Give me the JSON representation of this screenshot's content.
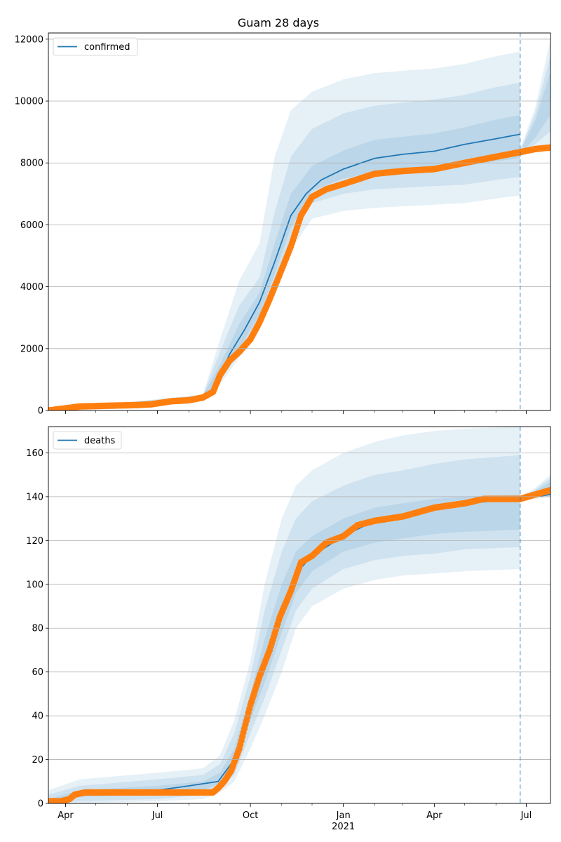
{
  "chart_data": [
    {
      "type": "line",
      "title": "Guam 28 days",
      "legend": {
        "label": "confirmed",
        "placement": "top-left"
      },
      "ylim": [
        0,
        12200
      ],
      "yticks": [
        0,
        2000,
        4000,
        6000,
        8000,
        10000,
        12000
      ],
      "grid": "horizontal",
      "forecast_start": "2021-06-25",
      "x_range": [
        "2020-03-15",
        "2021-07-25"
      ],
      "observed": {
        "points": [
          [
            "2020-03-15",
            0
          ],
          [
            "2020-04-01",
            70
          ],
          [
            "2020-04-15",
            130
          ],
          [
            "2020-05-15",
            155
          ],
          [
            "2020-06-10",
            175
          ],
          [
            "2020-06-25",
            200
          ],
          [
            "2020-07-15",
            300
          ],
          [
            "2020-08-01",
            330
          ],
          [
            "2020-08-15",
            420
          ],
          [
            "2020-08-25",
            600
          ],
          [
            "2020-09-01",
            1150
          ],
          [
            "2020-09-10",
            1600
          ],
          [
            "2020-09-20",
            1900
          ],
          [
            "2020-10-01",
            2300
          ],
          [
            "2020-10-10",
            2850
          ],
          [
            "2020-10-20",
            3600
          ],
          [
            "2020-10-30",
            4400
          ],
          [
            "2020-11-10",
            5300
          ],
          [
            "2020-11-20",
            6300
          ],
          [
            "2020-12-01",
            6900
          ],
          [
            "2020-12-15",
            7150
          ],
          [
            "2021-01-01",
            7320
          ],
          [
            "2021-02-01",
            7650
          ],
          [
            "2021-03-01",
            7740
          ],
          [
            "2021-04-01",
            7800
          ],
          [
            "2021-05-01",
            8000
          ],
          [
            "2021-06-01",
            8200
          ],
          [
            "2021-06-25",
            8350
          ],
          [
            "2021-07-10",
            8450
          ],
          [
            "2021-07-25",
            8500
          ]
        ]
      },
      "forecast_mean": {
        "points": [
          [
            "2020-03-15",
            0
          ],
          [
            "2020-04-15",
            120
          ],
          [
            "2020-06-25",
            200
          ],
          [
            "2020-08-15",
            450
          ],
          [
            "2020-08-28",
            700
          ],
          [
            "2020-09-10",
            1800
          ],
          [
            "2020-09-25",
            2600
          ],
          [
            "2020-10-10",
            3500
          ],
          [
            "2020-10-25",
            4800
          ],
          [
            "2020-11-10",
            6300
          ],
          [
            "2020-11-25",
            7000
          ],
          [
            "2020-12-10",
            7450
          ],
          [
            "2021-01-01",
            7800
          ],
          [
            "2021-02-01",
            8150
          ],
          [
            "2021-03-01",
            8280
          ],
          [
            "2021-04-01",
            8380
          ],
          [
            "2021-05-01",
            8600
          ],
          [
            "2021-06-01",
            8780
          ],
          [
            "2021-06-25",
            8930
          ]
        ]
      },
      "bands": [
        {
          "level": "outer",
          "points": [
            [
              "2020-03-15",
              0,
              0
            ],
            [
              "2020-08-15",
              380,
              520
            ],
            [
              "2020-09-01",
              850,
              2300
            ],
            [
              "2020-09-20",
              1700,
              4200
            ],
            [
              "2020-10-10",
              2600,
              5400
            ],
            [
              "2020-10-25",
              3700,
              8200
            ],
            [
              "2020-11-10",
              5200,
              9700
            ],
            [
              "2020-12-01",
              6200,
              10300
            ],
            [
              "2021-01-01",
              6450,
              10700
            ],
            [
              "2021-02-01",
              6550,
              10900
            ],
            [
              "2021-03-01",
              6600,
              10980
            ],
            [
              "2021-04-01",
              6650,
              11050
            ],
            [
              "2021-05-01",
              6700,
              11200
            ],
            [
              "2021-06-01",
              6850,
              11450
            ],
            [
              "2021-06-25",
              6950,
              11600
            ]
          ]
        },
        {
          "level": "middle",
          "points": [
            [
              "2020-03-15",
              0,
              0
            ],
            [
              "2020-08-15",
              400,
              500
            ],
            [
              "2020-09-01",
              950,
              1900
            ],
            [
              "2020-09-20",
              1850,
              3400
            ],
            [
              "2020-10-10",
              2900,
              4300
            ],
            [
              "2020-10-25",
              4000,
              6400
            ],
            [
              "2020-11-10",
              5600,
              8200
            ],
            [
              "2020-12-01",
              6700,
              9100
            ],
            [
              "2021-01-01",
              7000,
              9600
            ],
            [
              "2021-02-01",
              7150,
              9850
            ],
            [
              "2021-03-01",
              7200,
              9950
            ],
            [
              "2021-04-01",
              7250,
              10050
            ],
            [
              "2021-05-01",
              7300,
              10200
            ],
            [
              "2021-06-01",
              7450,
              10450
            ],
            [
              "2021-06-25",
              7550,
              10600
            ]
          ]
        },
        {
          "level": "inner",
          "points": [
            [
              "2020-03-15",
              0,
              0
            ],
            [
              "2020-08-15",
              420,
              480
            ],
            [
              "2020-09-01",
              1050,
              1500
            ],
            [
              "2020-09-20",
              2000,
              2800
            ],
            [
              "2020-10-10",
              3100,
              3800
            ],
            [
              "2020-10-25",
              4400,
              5400
            ],
            [
              "2020-11-10",
              5900,
              7000
            ],
            [
              "2020-12-01",
              7100,
              7900
            ],
            [
              "2021-01-01",
              7500,
              8400
            ],
            [
              "2021-02-01",
              7700,
              8750
            ],
            [
              "2021-03-01",
              7750,
              8850
            ],
            [
              "2021-04-01",
              7800,
              8950
            ],
            [
              "2021-05-01",
              7900,
              9150
            ],
            [
              "2021-06-01",
              8050,
              9400
            ],
            [
              "2021-06-25",
              8150,
              9550
            ]
          ]
        }
      ],
      "extension_band": [
        [
          "2021-06-25",
          8200,
          8450
        ],
        [
          "2021-07-10",
          8400,
          9800
        ],
        [
          "2021-07-25",
          8500,
          12000
        ]
      ]
    },
    {
      "type": "line",
      "legend": {
        "label": "deaths",
        "placement": "top-left"
      },
      "ylim": [
        0,
        172
      ],
      "yticks": [
        0,
        20,
        40,
        60,
        80,
        100,
        120,
        140,
        160
      ],
      "grid": "horizontal",
      "forecast_start": "2021-06-25",
      "x_range": [
        "2020-03-15",
        "2021-07-25"
      ],
      "xticks": [
        "Apr",
        "Jul",
        "Oct",
        "Jan",
        "Apr",
        "Jul"
      ],
      "xtick_dates": [
        "2020-04-01",
        "2020-07-01",
        "2020-10-01",
        "2021-01-01",
        "2021-04-01",
        "2021-07-01"
      ],
      "xtick_sublabel": {
        "under": "Jan",
        "text": "2021"
      },
      "observed": {
        "points": [
          [
            "2020-03-15",
            1
          ],
          [
            "2020-03-28",
            1
          ],
          [
            "2020-04-05",
            2
          ],
          [
            "2020-04-10",
            4
          ],
          [
            "2020-04-20",
            5
          ],
          [
            "2020-08-25",
            5
          ],
          [
            "2020-08-30",
            7
          ],
          [
            "2020-09-05",
            10
          ],
          [
            "2020-09-12",
            15
          ],
          [
            "2020-09-20",
            25
          ],
          [
            "2020-10-01",
            45
          ],
          [
            "2020-10-10",
            58
          ],
          [
            "2020-10-20",
            70
          ],
          [
            "2020-10-30",
            85
          ],
          [
            "2020-11-10",
            97
          ],
          [
            "2020-11-20",
            110
          ],
          [
            "2020-12-01",
            113
          ],
          [
            "2020-12-15",
            119
          ],
          [
            "2021-01-01",
            122
          ],
          [
            "2021-01-15",
            127
          ],
          [
            "2021-02-01",
            129
          ],
          [
            "2021-03-01",
            131
          ],
          [
            "2021-04-01",
            135
          ],
          [
            "2021-05-01",
            137
          ],
          [
            "2021-05-20",
            139
          ],
          [
            "2021-06-25",
            139
          ],
          [
            "2021-07-10",
            141
          ],
          [
            "2021-07-25",
            143
          ]
        ]
      },
      "forecast_mean": {
        "points": [
          [
            "2020-03-15",
            1
          ],
          [
            "2020-04-05",
            3
          ],
          [
            "2020-04-15",
            5
          ],
          [
            "2020-07-01",
            6
          ],
          [
            "2020-08-01",
            8
          ],
          [
            "2020-08-30",
            10
          ],
          [
            "2020-09-15",
            20
          ],
          [
            "2020-10-01",
            45
          ],
          [
            "2020-10-15",
            65
          ],
          [
            "2020-11-01",
            88
          ],
          [
            "2020-11-15",
            105
          ],
          [
            "2020-12-01",
            113
          ],
          [
            "2021-01-01",
            122
          ],
          [
            "2021-02-01",
            129
          ],
          [
            "2021-03-01",
            132
          ],
          [
            "2021-04-01",
            135
          ],
          [
            "2021-05-01",
            137
          ],
          [
            "2021-06-25",
            139
          ],
          [
            "2021-07-25",
            141
          ]
        ]
      },
      "bands": [
        {
          "level": "outer",
          "points": [
            [
              "2020-03-15",
              0,
              6
            ],
            [
              "2020-04-15",
              0,
              11
            ],
            [
              "2020-07-01",
              1,
              14
            ],
            [
              "2020-08-15",
              2,
              16
            ],
            [
              "2020-09-01",
              5,
              22
            ],
            [
              "2020-09-15",
              10,
              38
            ],
            [
              "2020-10-01",
              25,
              65
            ],
            [
              "2020-10-15",
              40,
              100
            ],
            [
              "2020-11-01",
              60,
              130
            ],
            [
              "2020-11-15",
              80,
              145
            ],
            [
              "2020-12-01",
              90,
              152
            ],
            [
              "2021-01-01",
              98,
              160
            ],
            [
              "2021-02-01",
              102,
              165
            ],
            [
              "2021-03-01",
              104,
              168
            ],
            [
              "2021-04-01",
              105,
              170
            ],
            [
              "2021-05-01",
              106,
              171
            ],
            [
              "2021-06-25",
              107,
              172
            ]
          ]
        },
        {
          "level": "middle",
          "points": [
            [
              "2020-03-15",
              0,
              4
            ],
            [
              "2020-04-15",
              1,
              8
            ],
            [
              "2020-07-01",
              2,
              11
            ],
            [
              "2020-08-15",
              4,
              13
            ],
            [
              "2020-09-01",
              7,
              18
            ],
            [
              "2020-09-15",
              13,
              32
            ],
            [
              "2020-10-01",
              32,
              58
            ],
            [
              "2020-10-15",
              48,
              88
            ],
            [
              "2020-11-01",
              70,
              115
            ],
            [
              "2020-11-15",
              88,
              130
            ],
            [
              "2020-12-01",
              98,
              138
            ],
            [
              "2021-01-01",
              107,
              145
            ],
            [
              "2021-02-01",
              111,
              150
            ],
            [
              "2021-03-01",
              113,
              152
            ],
            [
              "2021-04-01",
              114,
              155
            ],
            [
              "2021-05-01",
              116,
              157
            ],
            [
              "2021-06-25",
              117,
              159
            ]
          ]
        },
        {
          "level": "inner",
          "points": [
            [
              "2020-03-15",
              0,
              2
            ],
            [
              "2020-04-15",
              3,
              6
            ],
            [
              "2020-07-01",
              4,
              8
            ],
            [
              "2020-08-15",
              6,
              10
            ],
            [
              "2020-09-01",
              9,
              14
            ],
            [
              "2020-09-15",
              17,
              25
            ],
            [
              "2020-10-01",
              38,
              50
            ],
            [
              "2020-10-15",
              55,
              75
            ],
            [
              "2020-11-01",
              78,
              100
            ],
            [
              "2020-11-15",
              96,
              115
            ],
            [
              "2020-12-01",
              106,
              122
            ],
            [
              "2021-01-01",
              115,
              130
            ],
            [
              "2021-02-01",
              119,
              135
            ],
            [
              "2021-03-01",
              121,
              137
            ],
            [
              "2021-04-01",
              123,
              139
            ],
            [
              "2021-05-01",
              124,
              140
            ],
            [
              "2021-06-25",
              125,
              141
            ]
          ]
        }
      ],
      "extension_band": [
        [
          "2021-06-25",
          138,
          140
        ],
        [
          "2021-07-10",
          139,
          144
        ],
        [
          "2021-07-25",
          140,
          150
        ]
      ]
    }
  ],
  "colors": {
    "forecast_line": "#1f77b4",
    "observed_marker": "#ff7f0e",
    "band_fill": "#1f77b4",
    "grid": "#b0b0b0",
    "vline": "#1f77b4"
  }
}
